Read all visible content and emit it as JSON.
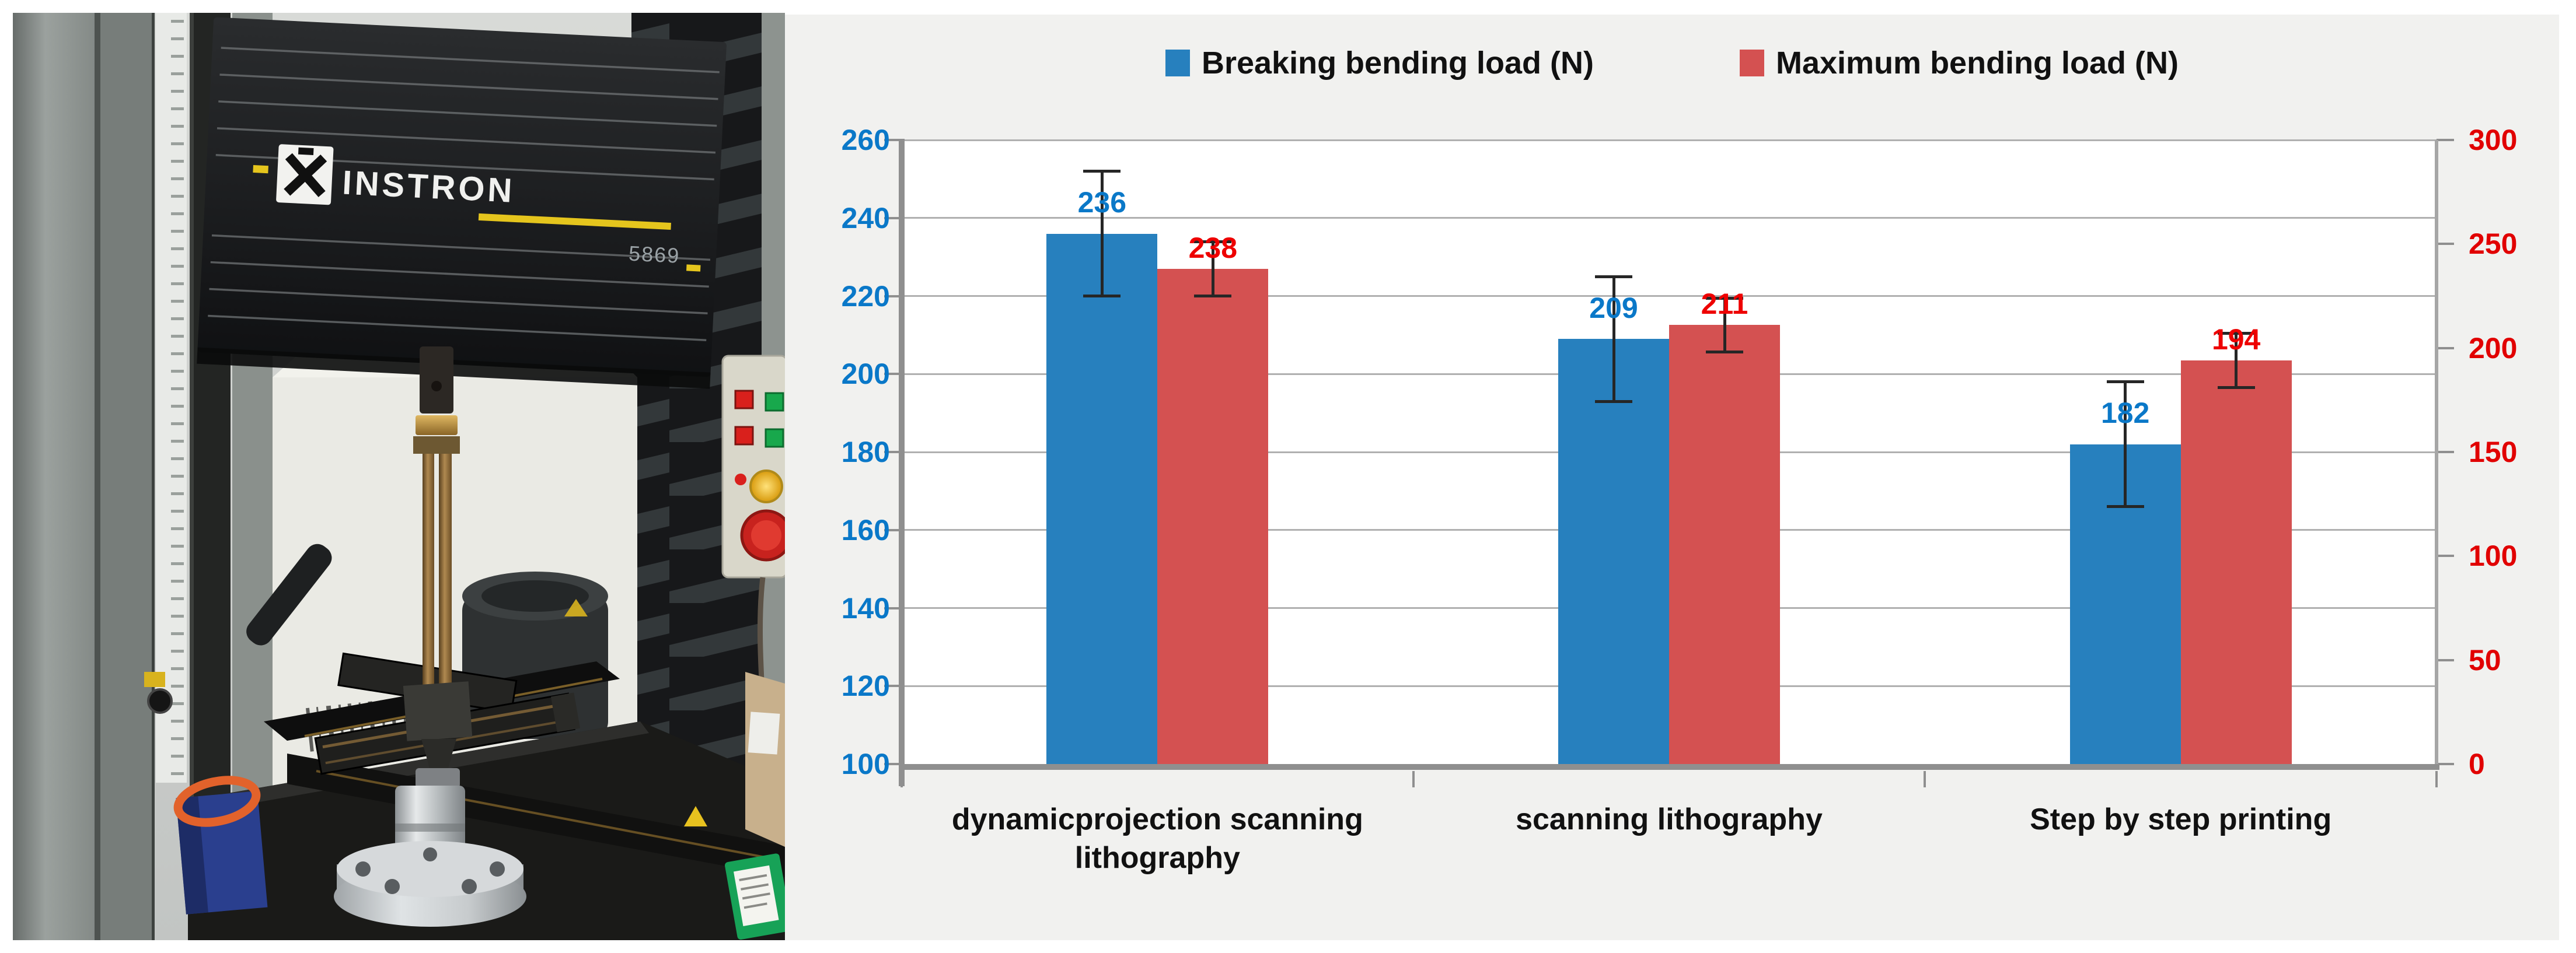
{
  "figure": {
    "photo": {
      "brand": "INSTRON",
      "model": "5869",
      "description": "universal testing machine with bending fixture"
    }
  },
  "chart_data": {
    "type": "bar",
    "title": "",
    "categories": [
      "dynamicprojection scanning lithography",
      "scanning lithography",
      "Step by step printing"
    ],
    "series": [
      {
        "name": "Breaking bending load (N)",
        "axis": "left",
        "color": "#2780BE",
        "label_color": "#0A78C8",
        "values": [
          236,
          209,
          182
        ],
        "errors": [
          16,
          16,
          16
        ]
      },
      {
        "name": "Maximum bending load (N)",
        "axis": "right",
        "color": "#D45151",
        "label_color": "#EE0000",
        "values": [
          238,
          211,
          194
        ],
        "errors": [
          13,
          13,
          13
        ]
      }
    ],
    "axes": {
      "left": {
        "min": 100,
        "max": 260,
        "step": 20,
        "color": "#0A78C8"
      },
      "right": {
        "min": 0,
        "max": 300,
        "step": 50,
        "color": "#E10000"
      }
    },
    "grid": true,
    "legend_position": "top"
  }
}
